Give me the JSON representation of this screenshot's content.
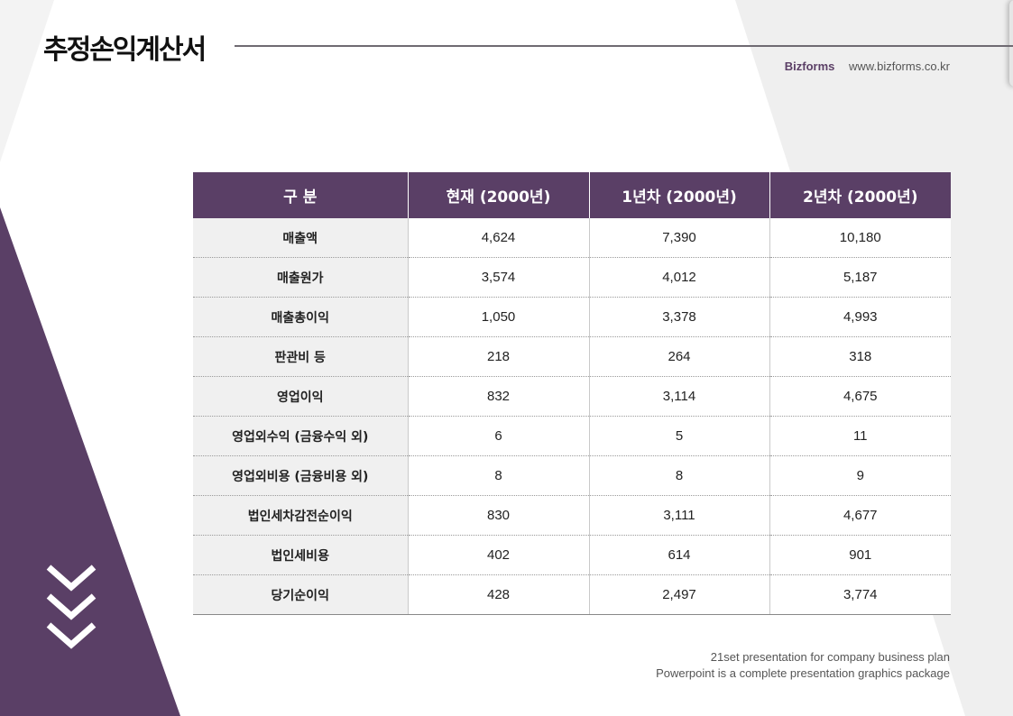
{
  "header": {
    "title": "추정손익계산서",
    "brand_name": "Bizforms",
    "brand_url": "www.bizforms.co.kr"
  },
  "table": {
    "headers": [
      "구 분",
      "현재 (2000년)",
      "1년차 (2000년)",
      "2년차 (2000년)"
    ],
    "rows": [
      [
        "매출액",
        "4,624",
        "7,390",
        "10,180"
      ],
      [
        "매출원가",
        "3,574",
        "4,012",
        "5,187"
      ],
      [
        "매출총이익",
        "1,050",
        "3,378",
        "4,993"
      ],
      [
        "판관비 등",
        "218",
        "264",
        "318"
      ],
      [
        "영업이익",
        "832",
        "3,114",
        "4,675"
      ],
      [
        "영업외수익 (금융수익 외)",
        "6",
        "5",
        "11"
      ],
      [
        "영업외비용 (금융비용 외)",
        "8",
        "8",
        "9"
      ],
      [
        "법인세차감전순이익",
        "830",
        "3,111",
        "4,677"
      ],
      [
        "법인세비용",
        "402",
        "614",
        "901"
      ],
      [
        "당기순이익",
        "428",
        "2,497",
        "3,774"
      ]
    ]
  },
  "footer": {
    "line1": "21set presentation for company business plan",
    "line2": "Powerpoint is a complete presentation graphics package"
  },
  "colors": {
    "accent": "#5a3f66",
    "label_bg": "#f0f0f0",
    "background_shape": "#efefef"
  },
  "icons": [
    "chevron-down-icon",
    "chevron-down-icon",
    "chevron-down-icon"
  ]
}
